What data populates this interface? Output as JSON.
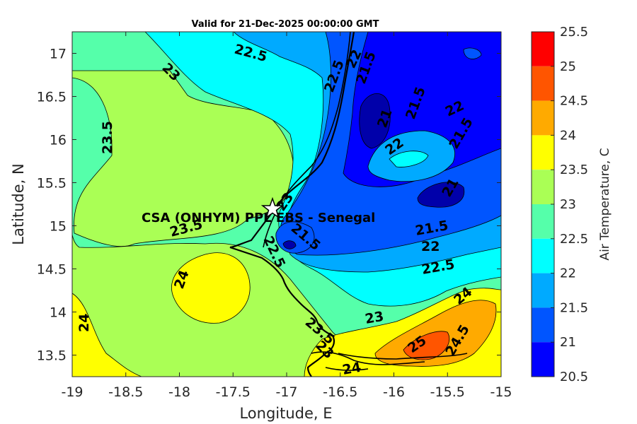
{
  "title": "Valid for 21-Dec-2025 00:00:00 GMT",
  "x_axis": {
    "label": "Longitude, E",
    "ticks": [
      "-19",
      "-18.5",
      "-18",
      "-17.5",
      "-17",
      "-16.5",
      "-16",
      "-15.5",
      "-15"
    ]
  },
  "y_axis": {
    "label": "Latitude, N",
    "ticks": [
      "17",
      "16.5",
      "16",
      "15.5",
      "15",
      "14.5",
      "14",
      "13.5"
    ]
  },
  "station": {
    "label": "CSA (ONHYM) PPL EBS  - Senegal",
    "marker": "star-icon"
  },
  "colorbar": {
    "label": "Air Temperature, C",
    "ticks": [
      "25.5",
      "25",
      "24.5",
      "24",
      "23.5",
      "23",
      "22.5",
      "22",
      "21.5",
      "21",
      "20.5"
    ],
    "colors": [
      "#ff0000",
      "#ff5500",
      "#ffaa00",
      "#ffff00",
      "#aaff55",
      "#55ffaa",
      "#00ffff",
      "#00aaff",
      "#0055ff",
      "#0000ff",
      "#0000aa"
    ]
  },
  "contour_labels": [
    "22.5",
    "23",
    "22.5",
    "22",
    "21.5",
    "21.5",
    "21",
    "22",
    "22",
    "21.5",
    "23.5",
    "23",
    "21",
    "23.5",
    "21.5",
    "22.5",
    "22",
    "21.5",
    "22.5",
    "24",
    "24",
    "24",
    "23",
    "25",
    "24.5",
    "23.5",
    "24",
    "23"
  ],
  "chart_data": {
    "type": "heatmap",
    "title": "Valid for 21-Dec-2025 00:00:00 GMT",
    "xlabel": "Longitude, E",
    "ylabel": "Latitude, N",
    "xlim": [
      -19,
      -15
    ],
    "ylim": [
      13.25,
      17.25
    ],
    "colorbar_range": [
      20.5,
      25.5
    ],
    "colorbar_step": 0.5,
    "variable": "Air Temperature, C",
    "station": {
      "name": "CSA (ONHYM) PPL EBS  - Senegal",
      "lon": -17.13,
      "lat": 15.22
    }
  }
}
